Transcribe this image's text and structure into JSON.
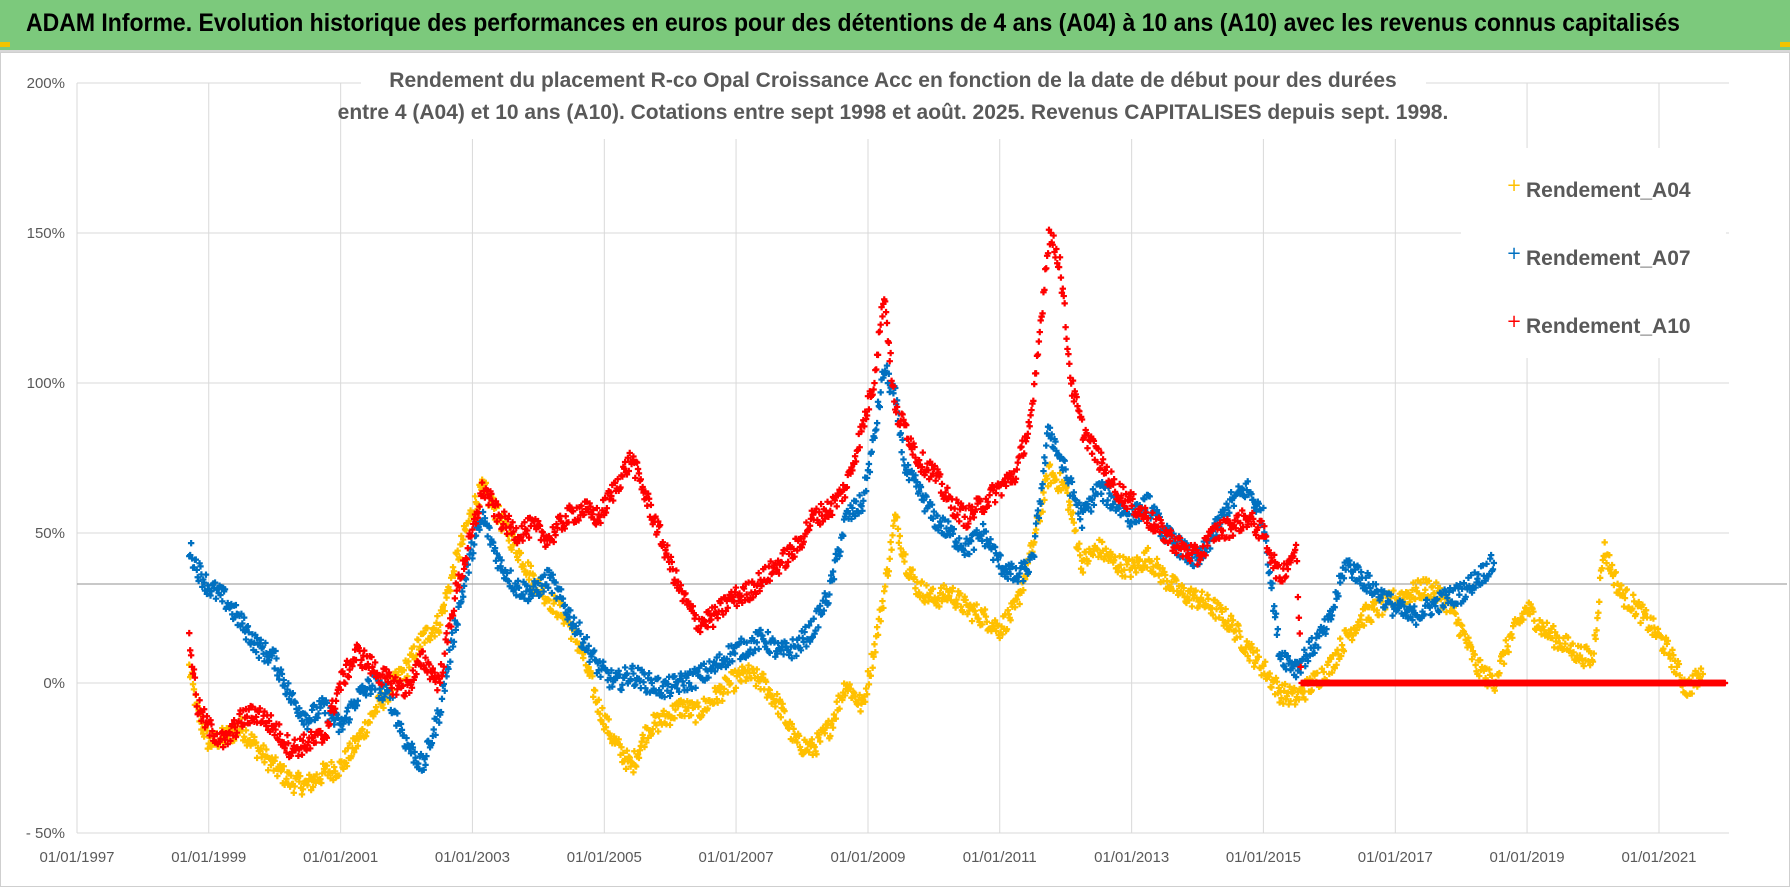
{
  "banner": {
    "title": "ADAM Informe. Evolution historique des performances en euros pour des détentions de 4 ans (A04) à 10 ans (A10) avec les revenus connus capitalisés"
  },
  "colors": {
    "banner_bg": "#7cc97c",
    "A04": "#ffc000",
    "A07": "#0070c0",
    "A10": "#ff0000",
    "grid": "#d9d9d9",
    "text": "#595959"
  },
  "chart_data": {
    "type": "scatter",
    "title_lines": [
      "Rendement du placement R-co Opal Croissance Acc en fonction de la date de début pour des durées",
      "entre 4 (A04) et 10 ans (A10).  Cotations entre sept 1998 et août. 2025.  Revenus CAPITALISES depuis sept. 1998."
    ],
    "xlabel": "",
    "ylabel": "",
    "x_ticks": [
      "01/01/1997",
      "01/01/1999",
      "01/01/2001",
      "01/01/2003",
      "01/01/2005",
      "01/01/2007",
      "01/01/2009",
      "01/01/2011",
      "01/01/2013",
      "01/01/2015",
      "01/01/2017",
      "01/01/2019",
      "01/01/2021"
    ],
    "xlim": [
      "1997-01-01",
      "2022-01-24"
    ],
    "ylim": [
      -50,
      200
    ],
    "y_ticks": [
      "- 50%",
      "0%",
      "50%",
      "100%",
      "150%",
      "200%"
    ],
    "y_tick_values": [
      -50,
      0,
      50,
      100,
      150,
      200
    ],
    "grid": true,
    "legend_position": "top-right",
    "reference_line_y": 33,
    "marker": "+",
    "series": [
      {
        "name": "Rendement_A04",
        "color": "#ffc000",
        "points": [
          [
            "1998-09-15",
            5
          ],
          [
            "1998-11-01",
            -10
          ],
          [
            "1999-01-01",
            -20
          ],
          [
            "1999-04-01",
            -18
          ],
          [
            "1999-07-01",
            -15
          ],
          [
            "1999-10-01",
            -22
          ],
          [
            "2000-01-01",
            -28
          ],
          [
            "2000-04-01",
            -33
          ],
          [
            "2000-07-01",
            -34
          ],
          [
            "2000-10-01",
            -30
          ],
          [
            "2001-01-01",
            -28
          ],
          [
            "2001-04-01",
            -20
          ],
          [
            "2001-07-01",
            -10
          ],
          [
            "2001-10-01",
            -2
          ],
          [
            "2002-01-01",
            5
          ],
          [
            "2002-04-01",
            15
          ],
          [
            "2002-07-01",
            20
          ],
          [
            "2002-10-01",
            40
          ],
          [
            "2003-01-01",
            58
          ],
          [
            "2003-03-01",
            65
          ],
          [
            "2003-06-01",
            55
          ],
          [
            "2003-09-01",
            45
          ],
          [
            "2003-12-01",
            35
          ],
          [
            "2004-03-01",
            28
          ],
          [
            "2004-06-01",
            22
          ],
          [
            "2004-09-01",
            10
          ],
          [
            "2004-12-01",
            -8
          ],
          [
            "2005-03-01",
            -20
          ],
          [
            "2005-06-01",
            -28
          ],
          [
            "2005-09-01",
            -15
          ],
          [
            "2005-12-01",
            -12
          ],
          [
            "2006-03-01",
            -8
          ],
          [
            "2006-06-01",
            -10
          ],
          [
            "2006-09-01",
            -5
          ],
          [
            "2006-12-01",
            0
          ],
          [
            "2007-03-01",
            3
          ],
          [
            "2007-06-01",
            0
          ],
          [
            "2007-09-01",
            -8
          ],
          [
            "2007-12-01",
            -20
          ],
          [
            "2008-03-01",
            -22
          ],
          [
            "2008-06-01",
            -15
          ],
          [
            "2008-09-01",
            0
          ],
          [
            "2008-12-01",
            -8
          ],
          [
            "2009-02-01",
            10
          ],
          [
            "2009-04-01",
            30
          ],
          [
            "2009-06-01",
            55
          ],
          [
            "2009-08-01",
            40
          ],
          [
            "2009-10-01",
            32
          ],
          [
            "2010-01-01",
            28
          ],
          [
            "2010-04-01",
            30
          ],
          [
            "2010-07-01",
            25
          ],
          [
            "2010-10-01",
            22
          ],
          [
            "2011-01-01",
            18
          ],
          [
            "2011-04-01",
            25
          ],
          [
            "2011-07-01",
            45
          ],
          [
            "2011-10-01",
            70
          ],
          [
            "2012-01-01",
            65
          ],
          [
            "2012-04-01",
            40
          ],
          [
            "2012-07-01",
            45
          ],
          [
            "2012-10-01",
            40
          ],
          [
            "2013-01-01",
            38
          ],
          [
            "2013-04-01",
            42
          ],
          [
            "2013-07-01",
            35
          ],
          [
            "2013-10-01",
            30
          ],
          [
            "2014-01-01",
            28
          ],
          [
            "2014-04-01",
            25
          ],
          [
            "2014-07-01",
            20
          ],
          [
            "2014-10-01",
            12
          ],
          [
            "2015-01-01",
            5
          ],
          [
            "2015-04-01",
            -3
          ],
          [
            "2015-07-01",
            -5
          ],
          [
            "2015-10-01",
            0
          ],
          [
            "2016-01-01",
            5
          ],
          [
            "2016-04-01",
            15
          ],
          [
            "2016-07-01",
            22
          ],
          [
            "2016-10-01",
            25
          ],
          [
            "2017-01-01",
            28
          ],
          [
            "2017-04-01",
            30
          ],
          [
            "2017-07-01",
            32
          ],
          [
            "2017-10-01",
            28
          ],
          [
            "2018-01-01",
            18
          ],
          [
            "2018-04-01",
            5
          ],
          [
            "2018-07-01",
            0
          ],
          [
            "2018-10-01",
            15
          ],
          [
            "2019-01-01",
            25
          ],
          [
            "2019-04-01",
            18
          ],
          [
            "2019-07-01",
            14
          ],
          [
            "2019-10-01",
            10
          ],
          [
            "2020-01-01",
            8
          ],
          [
            "2020-03-01",
            45
          ],
          [
            "2020-06-01",
            30
          ],
          [
            "2020-09-01",
            25
          ],
          [
            "2020-12-01",
            18
          ],
          [
            "2021-03-01",
            10
          ],
          [
            "2021-06-01",
            -2
          ],
          [
            "2021-09-01",
            3
          ]
        ]
      },
      {
        "name": "Rendement_A07",
        "color": "#0070c0",
        "points": [
          [
            "1998-09-15",
            45
          ],
          [
            "1998-11-01",
            38
          ],
          [
            "1999-01-01",
            32
          ],
          [
            "1999-04-01",
            28
          ],
          [
            "1999-07-01",
            20
          ],
          [
            "1999-10-01",
            12
          ],
          [
            "2000-01-01",
            8
          ],
          [
            "2000-04-01",
            -5
          ],
          [
            "2000-07-01",
            -12
          ],
          [
            "2000-10-01",
            -8
          ],
          [
            "2001-01-01",
            -15
          ],
          [
            "2001-04-01",
            -5
          ],
          [
            "2001-07-01",
            0
          ],
          [
            "2001-10-01",
            -5
          ],
          [
            "2002-01-01",
            -20
          ],
          [
            "2002-04-01",
            -28
          ],
          [
            "2002-07-01",
            -10
          ],
          [
            "2002-10-01",
            20
          ],
          [
            "2003-01-01",
            45
          ],
          [
            "2003-03-01",
            55
          ],
          [
            "2003-06-01",
            40
          ],
          [
            "2003-09-01",
            32
          ],
          [
            "2003-12-01",
            30
          ],
          [
            "2004-03-01",
            35
          ],
          [
            "2004-06-01",
            25
          ],
          [
            "2004-09-01",
            15
          ],
          [
            "2004-12-01",
            5
          ],
          [
            "2005-03-01",
            0
          ],
          [
            "2005-06-01",
            3
          ],
          [
            "2005-09-01",
            0
          ],
          [
            "2005-12-01",
            -2
          ],
          [
            "2006-03-01",
            0
          ],
          [
            "2006-06-01",
            2
          ],
          [
            "2006-09-01",
            5
          ],
          [
            "2006-12-01",
            10
          ],
          [
            "2007-03-01",
            12
          ],
          [
            "2007-06-01",
            15
          ],
          [
            "2007-09-01",
            10
          ],
          [
            "2007-12-01",
            12
          ],
          [
            "2008-03-01",
            18
          ],
          [
            "2008-06-01",
            30
          ],
          [
            "2008-09-01",
            55
          ],
          [
            "2008-12-01",
            60
          ],
          [
            "2009-02-01",
            80
          ],
          [
            "2009-04-01",
            105
          ],
          [
            "2009-06-01",
            95
          ],
          [
            "2009-08-01",
            70
          ],
          [
            "2009-10-01",
            65
          ],
          [
            "2010-01-01",
            55
          ],
          [
            "2010-04-01",
            50
          ],
          [
            "2010-07-01",
            45
          ],
          [
            "2010-10-01",
            50
          ],
          [
            "2011-01-01",
            40
          ],
          [
            "2011-04-01",
            35
          ],
          [
            "2011-07-01",
            40
          ],
          [
            "2011-10-01",
            85
          ],
          [
            "2012-01-01",
            70
          ],
          [
            "2012-04-01",
            55
          ],
          [
            "2012-07-01",
            65
          ],
          [
            "2012-10-01",
            60
          ],
          [
            "2013-01-01",
            55
          ],
          [
            "2013-04-01",
            60
          ],
          [
            "2013-07-01",
            50
          ],
          [
            "2013-10-01",
            45
          ],
          [
            "2014-01-01",
            40
          ],
          [
            "2014-04-01",
            50
          ],
          [
            "2014-07-01",
            60
          ],
          [
            "2014-10-01",
            65
          ],
          [
            "2015-01-01",
            55
          ],
          [
            "2015-04-01",
            10
          ],
          [
            "2015-07-01",
            5
          ],
          [
            "2015-10-01",
            12
          ],
          [
            "2016-01-01",
            20
          ],
          [
            "2016-04-01",
            40
          ],
          [
            "2016-07-01",
            35
          ],
          [
            "2016-10-01",
            30
          ],
          [
            "2017-01-01",
            25
          ],
          [
            "2017-04-01",
            22
          ],
          [
            "2017-07-01",
            25
          ],
          [
            "2017-10-01",
            28
          ],
          [
            "2018-01-01",
            30
          ],
          [
            "2018-04-01",
            35
          ],
          [
            "2018-07-01",
            40
          ]
        ]
      },
      {
        "name": "Rendement_A10",
        "color": "#ff0000",
        "points": [
          [
            "1998-09-15",
            15
          ],
          [
            "1998-11-01",
            -8
          ],
          [
            "1999-01-01",
            -15
          ],
          [
            "1999-04-01",
            -20
          ],
          [
            "1999-07-01",
            -12
          ],
          [
            "1999-10-01",
            -10
          ],
          [
            "2000-01-01",
            -15
          ],
          [
            "2000-04-01",
            -22
          ],
          [
            "2000-07-01",
            -20
          ],
          [
            "2000-10-01",
            -18
          ],
          [
            "2001-01-01",
            0
          ],
          [
            "2001-04-01",
            10
          ],
          [
            "2001-07-01",
            5
          ],
          [
            "2001-10-01",
            0
          ],
          [
            "2002-01-01",
            -2
          ],
          [
            "2002-04-01",
            8
          ],
          [
            "2002-07-01",
            0
          ],
          [
            "2002-10-01",
            30
          ],
          [
            "2003-01-01",
            50
          ],
          [
            "2003-03-01",
            65
          ],
          [
            "2003-06-01",
            55
          ],
          [
            "2003-09-01",
            50
          ],
          [
            "2003-12-01",
            52
          ],
          [
            "2004-03-01",
            48
          ],
          [
            "2004-06-01",
            55
          ],
          [
            "2004-09-01",
            58
          ],
          [
            "2004-12-01",
            55
          ],
          [
            "2005-03-01",
            65
          ],
          [
            "2005-06-01",
            75
          ],
          [
            "2005-09-01",
            60
          ],
          [
            "2005-12-01",
            45
          ],
          [
            "2006-03-01",
            30
          ],
          [
            "2006-06-01",
            20
          ],
          [
            "2006-09-01",
            22
          ],
          [
            "2006-12-01",
            28
          ],
          [
            "2007-03-01",
            30
          ],
          [
            "2007-06-01",
            35
          ],
          [
            "2007-09-01",
            40
          ],
          [
            "2007-12-01",
            45
          ],
          [
            "2008-03-01",
            55
          ],
          [
            "2008-06-01",
            58
          ],
          [
            "2008-09-01",
            65
          ],
          [
            "2008-12-01",
            85
          ],
          [
            "2009-02-01",
            100
          ],
          [
            "2009-04-01",
            130
          ],
          [
            "2009-06-01",
            90
          ],
          [
            "2009-08-01",
            85
          ],
          [
            "2009-10-01",
            75
          ],
          [
            "2010-01-01",
            70
          ],
          [
            "2010-04-01",
            60
          ],
          [
            "2010-07-01",
            55
          ],
          [
            "2010-10-01",
            60
          ],
          [
            "2011-01-01",
            65
          ],
          [
            "2011-04-01",
            70
          ],
          [
            "2011-07-01",
            90
          ],
          [
            "2011-10-01",
            150
          ],
          [
            "2011-12-01",
            140
          ],
          [
            "2012-02-01",
            100
          ],
          [
            "2012-04-01",
            85
          ],
          [
            "2012-07-01",
            75
          ],
          [
            "2012-10-01",
            65
          ],
          [
            "2013-01-01",
            60
          ],
          [
            "2013-04-01",
            55
          ],
          [
            "2013-07-01",
            50
          ],
          [
            "2013-10-01",
            45
          ],
          [
            "2014-01-01",
            42
          ],
          [
            "2014-04-01",
            50
          ],
          [
            "2014-07-01",
            52
          ],
          [
            "2014-10-01",
            55
          ],
          [
            "2015-01-01",
            50
          ],
          [
            "2015-04-01",
            35
          ],
          [
            "2015-07-01",
            45
          ],
          [
            "2015-08-01",
            0
          ],
          [
            "2016-01-01",
            0
          ],
          [
            "2017-01-01",
            0
          ],
          [
            "2018-01-01",
            0
          ],
          [
            "2019-01-01",
            0
          ],
          [
            "2020-01-01",
            0
          ],
          [
            "2021-01-01",
            0
          ],
          [
            "2022-01-01",
            0
          ]
        ]
      }
    ]
  }
}
